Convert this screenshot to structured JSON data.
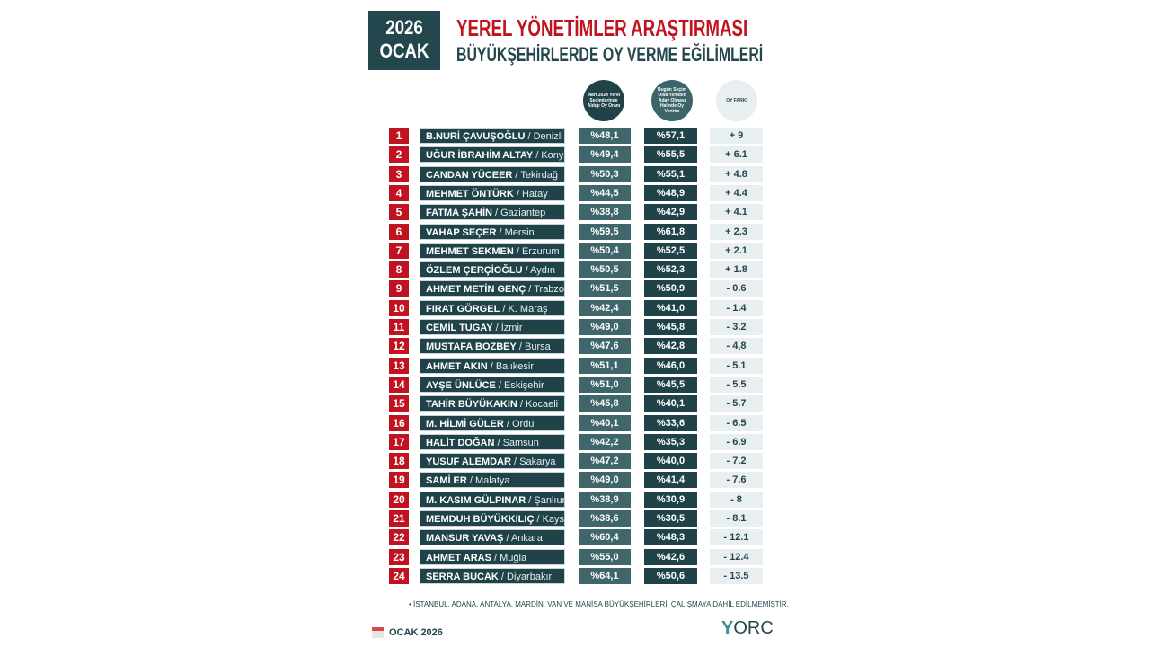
{
  "header": {
    "year": "2026",
    "month": "OCAK",
    "title": "YEREL YÖNETİMLER ARAŞTIRMASI",
    "subtitle": "BÜYÜKŞEHİRLERDE OY VERME EĞİLİMLERİ"
  },
  "columns": {
    "col1": "Mart 2024 Yerel Seçimlerinde Aldığı Oy Oranı",
    "col2": "Bugün Seçim Olsa Yeniden Aday Olması Halinde Oy Veririm",
    "col3": "OY FARKI"
  },
  "colors": {
    "accent_red": "#c1121f",
    "dark_teal": "#1f4349",
    "mid_teal": "#3f666b",
    "light": "#e9eef0"
  },
  "rows": [
    {
      "rank": "1",
      "name": "B.NURİ ÇAVUŞOĞLU",
      "city": "Denizli",
      "v2024": "%48,1",
      "now": "%57,1",
      "diff": "+ 9"
    },
    {
      "rank": "2",
      "name": "UĞUR İBRAHİM ALTAY",
      "city": "Konya",
      "v2024": "%49,4",
      "now": "%55,5",
      "diff": "+ 6.1"
    },
    {
      "rank": "3",
      "name": "CANDAN YÜCEER",
      "city": "Tekirdağ",
      "v2024": "%50,3",
      "now": "%55,1",
      "diff": "+ 4.8"
    },
    {
      "rank": "4",
      "name": "MEHMET ÖNTÜRK",
      "city": "Hatay",
      "v2024": "%44,5",
      "now": "%48,9",
      "diff": "+ 4.4"
    },
    {
      "rank": "5",
      "name": "FATMA ŞAHİN",
      "city": "Gaziantep",
      "v2024": "%38,8",
      "now": "%42,9",
      "diff": "+ 4.1"
    },
    {
      "rank": "6",
      "name": "VAHAP SEÇER",
      "city": "Mersin",
      "v2024": "%59,5",
      "now": "%61,8",
      "diff": "+ 2.3"
    },
    {
      "rank": "7",
      "name": "MEHMET SEKMEN",
      "city": "Erzurum",
      "v2024": "%50,4",
      "now": "%52,5",
      "diff": "+ 2.1"
    },
    {
      "rank": "8",
      "name": "ÖZLEM ÇERÇİOĞLU",
      "city": "Aydın",
      "v2024": "%50,5",
      "now": "%52,3",
      "diff": "+ 1.8"
    },
    {
      "rank": "9",
      "name": "AHMET METİN GENÇ",
      "city": "Trabzon",
      "v2024": "%51,5",
      "now": "%50,9",
      "diff": "- 0.6"
    },
    {
      "rank": "10",
      "name": "FIRAT GÖRGEL",
      "city": "K. Maraş",
      "v2024": "%42,4",
      "now": "%41,0",
      "diff": "- 1.4"
    },
    {
      "rank": "11",
      "name": "CEMİL TUGAY",
      "city": "İzmir",
      "v2024": "%49,0",
      "now": "%45,8",
      "diff": "- 3.2"
    },
    {
      "rank": "12",
      "name": "MUSTAFA BOZBEY",
      "city": "Bursa",
      "v2024": "%47,6",
      "now": "%42,8",
      "diff": "- 4,8"
    },
    {
      "rank": "13",
      "name": "AHMET AKIN",
      "city": "Balıkesir",
      "v2024": "%51,1",
      "now": "%46,0",
      "diff": "- 5.1"
    },
    {
      "rank": "14",
      "name": "AYŞE ÜNLÜCE",
      "city": "Eskişehir",
      "v2024": "%51,0",
      "now": "%45,5",
      "diff": "- 5.5"
    },
    {
      "rank": "15",
      "name": "TAHİR BÜYÜKAKIN",
      "city": "Kocaeli",
      "v2024": "%45,8",
      "now": "%40,1",
      "diff": "- 5.7"
    },
    {
      "rank": "16",
      "name": "M. HİLMİ GÜLER",
      "city": "Ordu",
      "v2024": "%40,1",
      "now": "%33,6",
      "diff": "- 6.5"
    },
    {
      "rank": "17",
      "name": "HALİT DOĞAN",
      "city": "Samsun",
      "v2024": "%42,2",
      "now": "%35,3",
      "diff": "- 6.9"
    },
    {
      "rank": "18",
      "name": "YUSUF ALEMDAR",
      "city": "Sakarya",
      "v2024": "%47,2",
      "now": "%40,0",
      "diff": "- 7.2"
    },
    {
      "rank": "19",
      "name": "SAMİ ER",
      "city": "Malatya",
      "v2024": "%49,0",
      "now": "%41,4",
      "diff": "- 7.6"
    },
    {
      "rank": "20",
      "name": "M. KASIM GÜLPINAR",
      "city": "Şanlıurfa",
      "v2024": "%38,9",
      "now": "%30,9",
      "diff": "- 8"
    },
    {
      "rank": "21",
      "name": "MEMDUH BÜYÜKKILIÇ",
      "city": "Kayseri",
      "v2024": "%38,6",
      "now": "%30,5",
      "diff": "- 8.1"
    },
    {
      "rank": "22",
      "name": "MANSUR YAVAŞ",
      "city": "Ankara",
      "v2024": "%60,4",
      "now": "%48,3",
      "diff": "- 12.1"
    },
    {
      "rank": "23",
      "name": "AHMET ARAS",
      "city": "Muğla",
      "v2024": "%55,0",
      "now": "%42,6",
      "diff": "- 12.4"
    },
    {
      "rank": "24",
      "name": "SERRA BUCAK",
      "city": "Diyarbakır",
      "v2024": "%64,1",
      "now": "%50,6",
      "diff": "- 13.5"
    }
  ],
  "footer": {
    "note": "•   İSTANBUL, ADANA, ANTALYA, MARDİN, VAN VE MANİSA BÜYÜKŞEHİRLERİ, ÇALIŞMAYA DAHİL EDİLMEMİŞTİR.",
    "date": "OCAK 2026",
    "logo": "ORC"
  }
}
